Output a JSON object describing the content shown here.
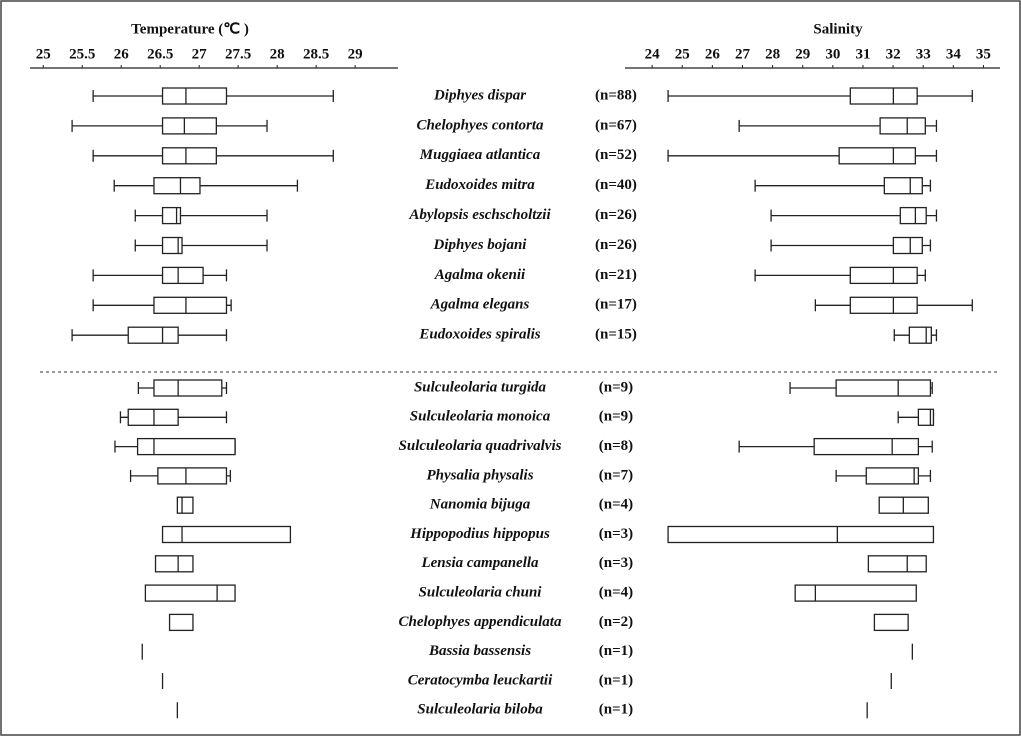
{
  "chart_data": {
    "type": "box",
    "categories": [
      "Diphyes dispar",
      "Chelophyes contorta",
      "Muggiaea atlantica",
      "Eudoxoides mitra",
      "Abylopsis eschscholtzii",
      "Diphyes bojani",
      "Agalma okenii",
      "Agalma elegans",
      "Eudoxoides spiralis",
      "Sulculeolaria turgida",
      "Sulculeolaria monoica",
      "Sulculeolaria quadrivalvis",
      "Physalia physalis",
      "Nanomia bijuga",
      "Hippopodius hippopus",
      "Lensia campanella",
      "Sulculeolaria chuni",
      "Chelophyes appendiculata",
      "Bassia bassensis",
      "Ceratocymba leuckartii",
      "Sulculeolaria biloba"
    ],
    "n_labels": [
      "(n=88)",
      "(n=67)",
      "(n=52)",
      "(n=40)",
      "(n=26)",
      "(n=26)",
      "(n=21)",
      "(n=17)",
      "(n=15)",
      "(n=9)",
      "(n=9)",
      "(n=8)",
      "(n=7)",
      "(n=4)",
      "(n=3)",
      "(n=3)",
      "(n=4)",
      "(n=2)",
      "(n=1)",
      "(n=1)",
      "(n=1)"
    ],
    "color": "#222222",
    "panels": [
      {
        "title": "Temperature (℃ )",
        "xlim": [
          24.83,
          29.55
        ],
        "xticks": [
          25,
          25.5,
          26,
          26.5,
          27,
          27.5,
          28,
          28.5,
          29
        ],
        "min": [
          25.64,
          25.37,
          25.64,
          25.91,
          26.18,
          26.18,
          25.64,
          25.64,
          25.37,
          26.22,
          25.99,
          25.92,
          26.12,
          null,
          null,
          null,
          null,
          null,
          null,
          null,
          null
        ],
        "q1": [
          26.53,
          26.53,
          26.53,
          26.42,
          26.53,
          26.53,
          26.53,
          26.42,
          26.09,
          26.42,
          26.09,
          26.21,
          26.47,
          26.72,
          26.53,
          26.44,
          26.31,
          26.62,
          null,
          null,
          null
        ],
        "median": [
          26.83,
          26.81,
          26.83,
          26.76,
          26.71,
          26.73,
          26.73,
          26.83,
          26.53,
          26.73,
          26.42,
          26.42,
          26.83,
          26.78,
          26.78,
          26.73,
          27.23,
          null,
          26.27,
          26.53,
          26.72
        ],
        "q3": [
          27.35,
          27.22,
          27.22,
          27.01,
          26.76,
          26.78,
          27.05,
          27.35,
          26.73,
          27.29,
          26.73,
          27.46,
          27.35,
          26.92,
          28.17,
          26.92,
          27.46,
          26.92,
          null,
          null,
          null
        ],
        "max": [
          28.72,
          27.87,
          28.72,
          28.26,
          27.87,
          27.87,
          27.35,
          27.41,
          27.35,
          27.35,
          27.35,
          27.46,
          27.4,
          null,
          null,
          null,
          null,
          null,
          null,
          null,
          null
        ]
      },
      {
        "title": "Salinity",
        "xlim": [
          23.1,
          35.55
        ],
        "xticks": [
          24,
          25,
          26,
          27,
          28,
          29,
          30,
          31,
          32,
          33,
          34,
          35
        ],
        "min": [
          24.53,
          26.89,
          24.53,
          27.42,
          27.95,
          27.95,
          27.42,
          29.42,
          32.04,
          28.58,
          32.17,
          26.89,
          30.11,
          null,
          null,
          null,
          null,
          null,
          null,
          null,
          null
        ],
        "q1": [
          30.58,
          31.57,
          30.21,
          31.71,
          32.24,
          32.01,
          30.58,
          30.58,
          32.54,
          30.11,
          32.84,
          29.38,
          31.11,
          31.54,
          24.53,
          31.18,
          28.75,
          31.38,
          null,
          null,
          null
        ],
        "median": [
          32.01,
          32.47,
          32.01,
          32.57,
          32.74,
          32.57,
          32.01,
          32.01,
          33.1,
          32.17,
          33.24,
          31.97,
          32.7,
          32.34,
          30.15,
          32.47,
          29.42,
          null,
          32.64,
          31.94,
          31.14
        ],
        "q3": [
          32.8,
          33.07,
          32.74,
          32.97,
          33.1,
          32.97,
          32.8,
          32.8,
          33.27,
          33.24,
          33.34,
          32.84,
          32.84,
          33.17,
          33.34,
          33.1,
          32.77,
          32.5,
          null,
          null,
          null
        ],
        "max": [
          34.63,
          33.44,
          33.44,
          33.24,
          33.44,
          33.24,
          33.07,
          34.63,
          33.44,
          33.3,
          33.34,
          33.3,
          33.24,
          null,
          null,
          null,
          null,
          null,
          null,
          null,
          null
        ]
      }
    ]
  }
}
